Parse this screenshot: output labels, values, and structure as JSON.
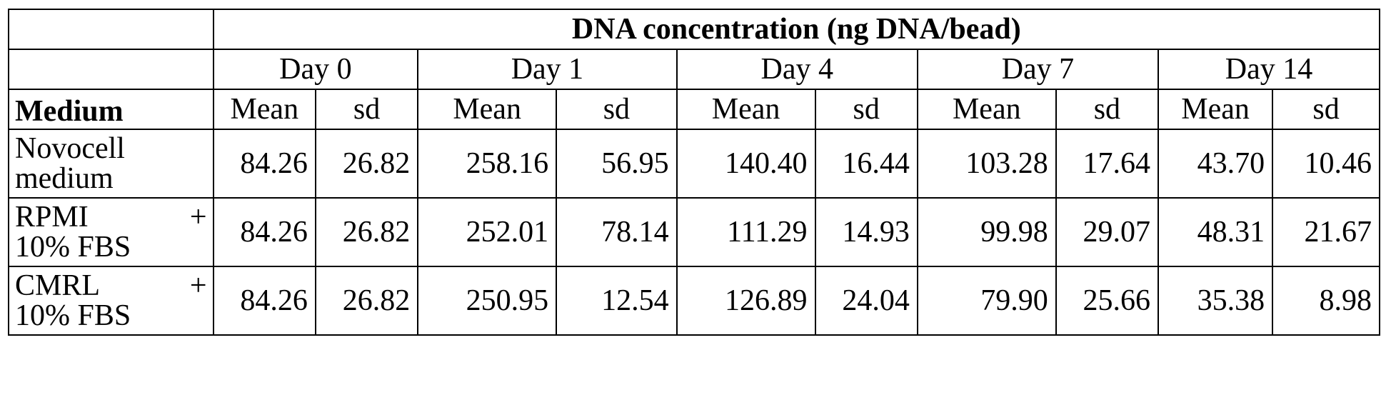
{
  "table": {
    "title": "DNA concentration (ng DNA/bead)",
    "medium_header": "Medium",
    "days": [
      "Day 0",
      "Day 1",
      "Day 4",
      "Day 7",
      "Day 14"
    ],
    "stat_labels": {
      "mean": "Mean",
      "sd": "sd"
    },
    "rows": [
      {
        "medium_line1": "Novocell",
        "medium_plus": "",
        "medium_line2": "medium",
        "values": [
          "84.26",
          "26.82",
          "258.16",
          "56.95",
          "140.40",
          "16.44",
          "103.28",
          "17.64",
          "43.70",
          "10.46"
        ]
      },
      {
        "medium_line1": "RPMI",
        "medium_plus": "+",
        "medium_line2": "10% FBS",
        "values": [
          "84.26",
          "26.82",
          "252.01",
          "78.14",
          "111.29",
          "14.93",
          "99.98",
          "29.07",
          "48.31",
          "21.67"
        ]
      },
      {
        "medium_line1": "CMRL",
        "medium_plus": "+",
        "medium_line2": "10% FBS",
        "values": [
          "84.26",
          "26.82",
          "250.95",
          "12.54",
          "126.89",
          "24.04",
          "79.90",
          "25.66",
          "35.38",
          "8.98"
        ]
      }
    ]
  }
}
